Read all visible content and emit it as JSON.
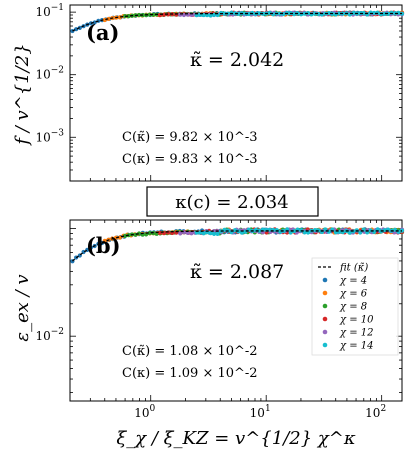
{
  "figure": {
    "kappa_box": "κ(c) = 2.034",
    "x_label": "ξ_χ / ξ_KZ  =  v^{1/2} χ^κ",
    "x_ticks": [
      "10^0",
      "10^1",
      "10^2"
    ]
  },
  "chart_data": [
    {
      "type": "scatter",
      "panel_label": "(a)",
      "ylabel": "f / v^{1/2}",
      "xscale": "log",
      "yscale": "log",
      "xlim": [
        0.2,
        150
      ],
      "ylim": [
        0.0002,
        0.13
      ],
      "y_ticks": [
        "10^-1",
        "10^-2",
        "10^-3"
      ],
      "kappa_tilde": "κ̃ = 2.042",
      "annotations": [
        "C(κ̃) = 9.82 × 10^-3",
        "C(κ) = 9.83 × 10^-3"
      ],
      "fit": {
        "style": "dashed",
        "color": "#000000",
        "asymptote": 0.095,
        "scale": 0.2,
        "exponent": 2.0,
        "x_range": [
          0.21,
          150
        ]
      },
      "series": [
        {
          "label": "χ = 4",
          "color": "#1f77b4",
          "x_range": [
            0.21,
            150
          ],
          "count": 90
        },
        {
          "label": "χ = 6",
          "color": "#ff7f0e",
          "x_range": [
            0.4,
            150
          ],
          "count": 80
        },
        {
          "label": "χ = 8",
          "color": "#2ca02c",
          "x_range": [
            0.6,
            150
          ],
          "count": 80
        },
        {
          "label": "χ = 10",
          "color": "#d62728",
          "x_range": [
            1.2,
            150
          ],
          "count": 60
        },
        {
          "label": "χ = 12",
          "color": "#9467bd",
          "x_range": [
            1.8,
            150
          ],
          "count": 60
        },
        {
          "label": "χ = 14",
          "color": "#17becf",
          "x_range": [
            2.5,
            150
          ],
          "count": 60
        }
      ]
    },
    {
      "type": "scatter",
      "panel_label": "(b)",
      "ylabel": "ε_ex / v",
      "xscale": "log",
      "yscale": "log",
      "xlim": [
        0.2,
        150
      ],
      "ylim": [
        0.0025,
        0.12
      ],
      "y_ticks": [
        "10^-2"
      ],
      "kappa_tilde": "κ̃ = 2.087",
      "annotations": [
        "C(κ̃) = 1.08 × 10^-2",
        "C(κ) = 1.09 × 10^-2"
      ],
      "fit": {
        "style": "dashed",
        "color": "#000000",
        "asymptote": 0.095,
        "scale": 0.2,
        "exponent": 2.0,
        "x_range": [
          0.21,
          150
        ]
      },
      "legend": {
        "placement": "lower-right",
        "entries": [
          "fit (κ̃)",
          "χ = 4",
          "χ = 6",
          "χ = 8",
          "χ = 10",
          "χ = 12",
          "χ = 14"
        ]
      },
      "series": [
        {
          "label": "χ = 4",
          "color": "#1f77b4",
          "x_range": [
            0.21,
            150
          ],
          "count": 90
        },
        {
          "label": "χ = 6",
          "color": "#ff7f0e",
          "x_range": [
            0.4,
            150
          ],
          "count": 80
        },
        {
          "label": "χ = 8",
          "color": "#2ca02c",
          "x_range": [
            0.6,
            150
          ],
          "count": 80
        },
        {
          "label": "χ = 10",
          "color": "#d62728",
          "x_range": [
            1.2,
            150
          ],
          "count": 60
        },
        {
          "label": "χ = 12",
          "color": "#9467bd",
          "x_range": [
            1.8,
            150
          ],
          "count": 60
        },
        {
          "label": "χ = 14",
          "color": "#17becf",
          "x_range": [
            2.5,
            150
          ],
          "count": 60
        }
      ]
    }
  ]
}
